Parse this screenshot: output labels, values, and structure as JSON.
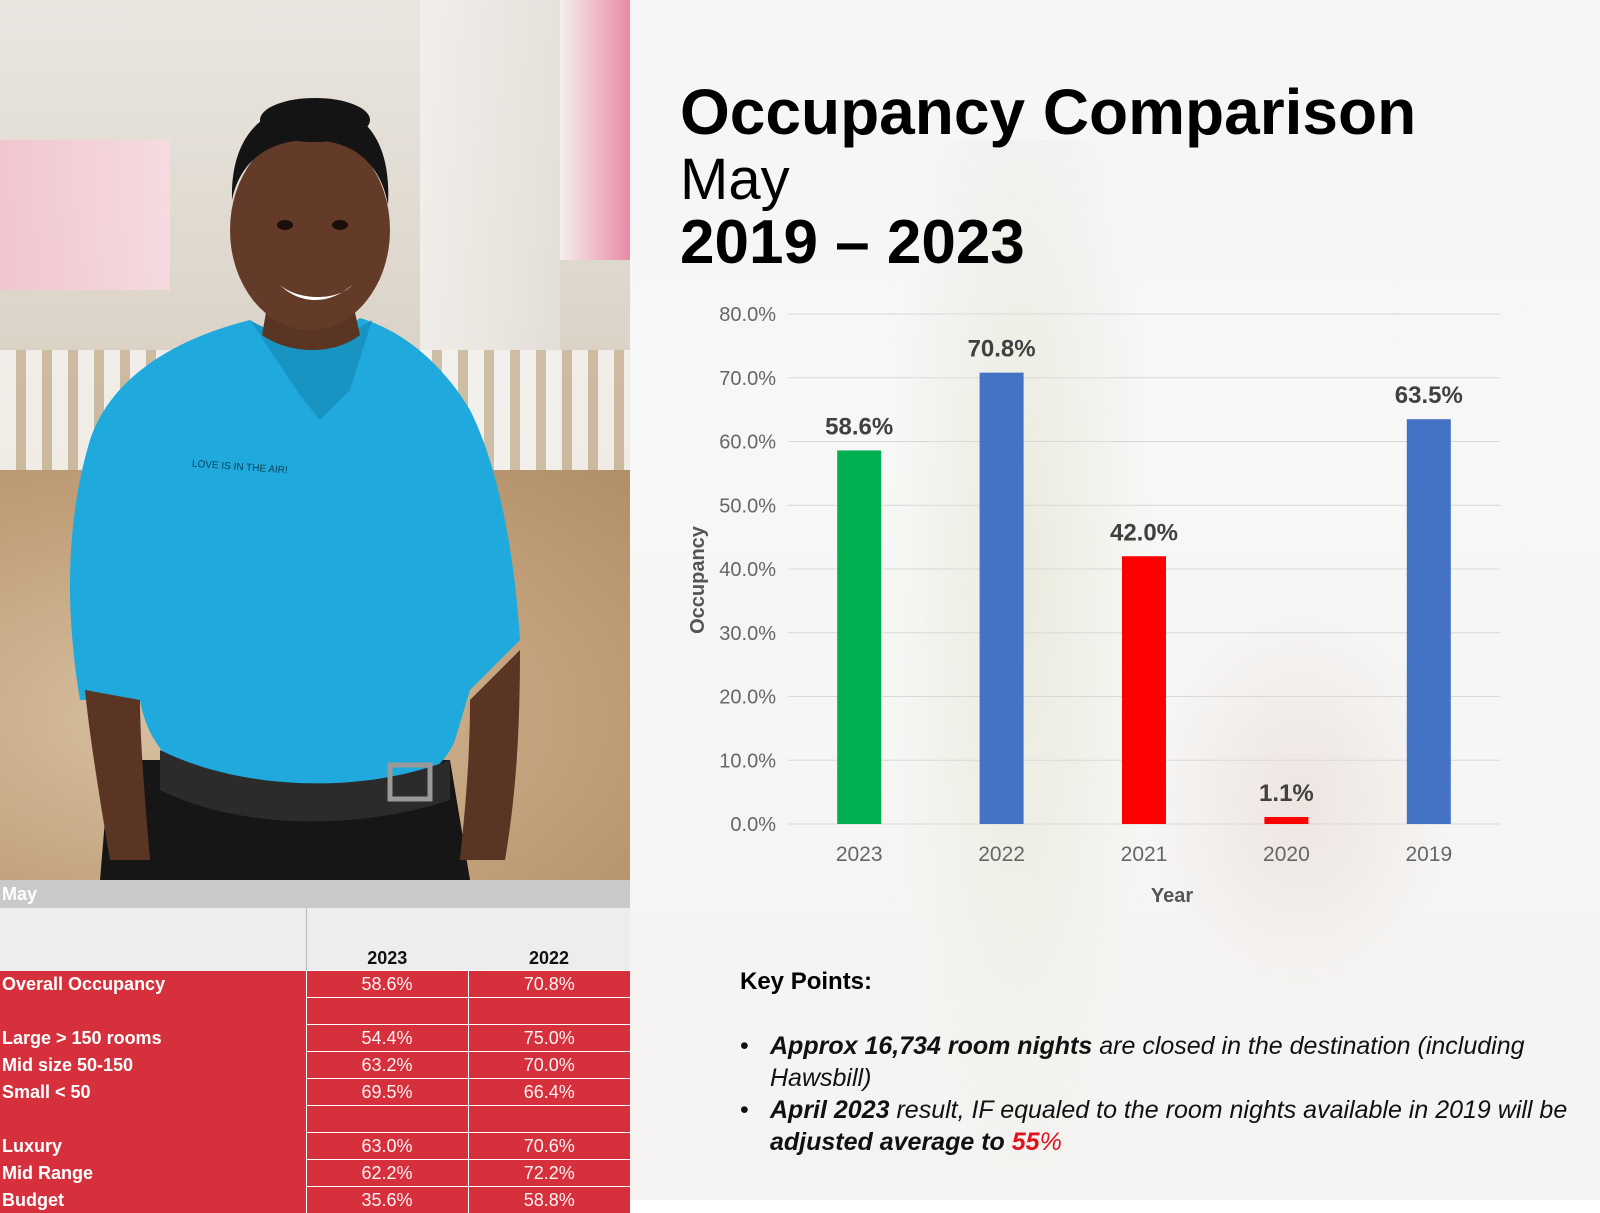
{
  "title": "Occupancy Comparison",
  "subtitle": "May",
  "year_range": "2019 – 2023",
  "chart_data": {
    "type": "bar",
    "categories": [
      "2023",
      "2022",
      "2021",
      "2020",
      "2019"
    ],
    "values": [
      58.6,
      70.8,
      42.0,
      1.1,
      63.5
    ],
    "data_labels": [
      "58.6%",
      "70.8%",
      "42.0%",
      "1.1%",
      "63.5%"
    ],
    "bar_colors": [
      "#00b050",
      "#4472c4",
      "#ff0000",
      "#ff0000",
      "#4472c4"
    ],
    "xlabel": "Year",
    "ylabel": "Occupancy",
    "ylim": [
      0,
      80
    ],
    "yticks": [
      "0.0%",
      "10.0%",
      "20.0%",
      "30.0%",
      "40.0%",
      "50.0%",
      "60.0%",
      "70.0%",
      "80.0%"
    ],
    "grid": true,
    "legend": "none"
  },
  "table": {
    "section": "May",
    "columns": [
      "2023",
      "2022"
    ],
    "rows": [
      {
        "label": "Overall Occupancy",
        "values": [
          "58.6%",
          "70.8%"
        ]
      },
      {
        "label": "",
        "values": [
          "",
          ""
        ]
      },
      {
        "label": "Large > 150 rooms",
        "values": [
          "54.4%",
          "75.0%"
        ]
      },
      {
        "label": "Mid size 50-150",
        "values": [
          "63.2%",
          "70.0%"
        ]
      },
      {
        "label": "Small < 50",
        "values": [
          "69.5%",
          "66.4%"
        ]
      },
      {
        "label": "",
        "values": [
          "",
          ""
        ]
      },
      {
        "label": "Luxury",
        "values": [
          "63.0%",
          "70.6%"
        ]
      },
      {
        "label": "Mid Range",
        "values": [
          "62.2%",
          "72.2%"
        ]
      },
      {
        "label": "Budget",
        "values": [
          "35.6%",
          "58.8%"
        ]
      }
    ]
  },
  "key_points": {
    "heading": "Key Points:",
    "point1_bold": "Approx 16,734 room nights",
    "point1_rest": " are closed in the destination (including Hawsbill)",
    "point2_bold": "April 2023",
    "point2_mid": " result, IF equaled to the room nights available in 2019 will be ",
    "point2_bold2": "adjusted average to ",
    "point2_red": "55",
    "point2_pct": "%"
  },
  "shirt_logo_text": "LOVE IS IN THE AIR!"
}
